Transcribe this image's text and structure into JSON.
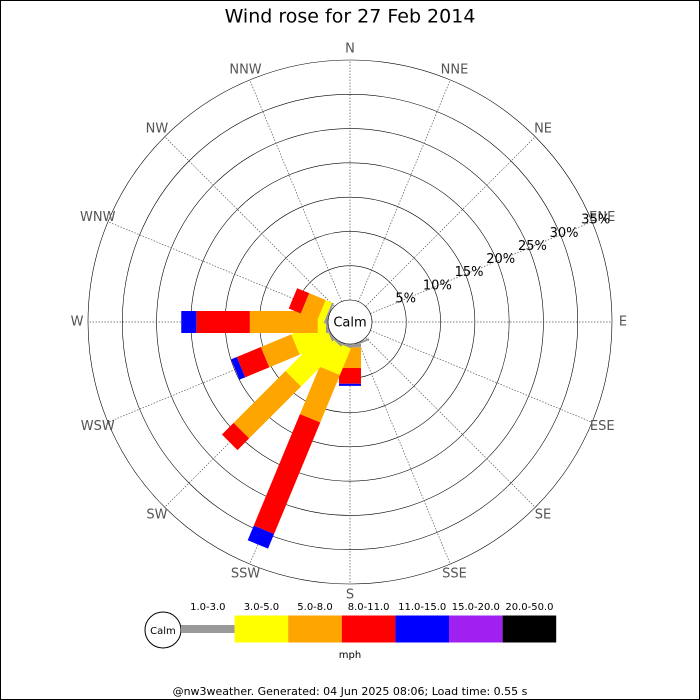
{
  "chart_data": {
    "type": "windrose",
    "title": "Wind rose for 27 Feb 2014",
    "center_label": "Calm",
    "categories": [
      "N",
      "NNE",
      "NE",
      "ENE",
      "E",
      "ESE",
      "SE",
      "SSE",
      "S",
      "SSW",
      "SW",
      "WSW",
      "W",
      "WNW",
      "NW",
      "NNW"
    ],
    "series": [
      {
        "name": "1.0-3.0",
        "color": "#999999",
        "values": [
          0,
          0,
          0,
          0,
          0,
          0,
          0,
          0.3,
          0.5,
          0.3,
          0.3,
          0.3,
          0.3,
          0.3,
          0,
          0
        ]
      },
      {
        "name": "3.0-5.0",
        "color": "#ffff00",
        "values": [
          0,
          0,
          0,
          0,
          0,
          0,
          0,
          0,
          0,
          4.2,
          8.2,
          5.1,
          1.2,
          1.0,
          0,
          0
        ]
      },
      {
        "name": "5.0-8.0",
        "color": "#ffa500",
        "values": [
          0,
          0,
          0,
          0,
          0,
          0,
          0,
          0,
          3.0,
          7.5,
          10.7,
          4.8,
          9.9,
          2.6,
          0,
          0
        ]
      },
      {
        "name": "8.0-11.0",
        "color": "#ff0000",
        "values": [
          0,
          0,
          0,
          0,
          0,
          0,
          0,
          0,
          2.3,
          17.6,
          2.4,
          3.8,
          7.8,
          1.9,
          0,
          0
        ]
      },
      {
        "name": "11.0-15.0",
        "color": "#0000ff",
        "values": [
          0,
          0,
          0,
          0,
          0,
          0,
          0,
          0,
          0.3,
          2.3,
          0,
          0.9,
          2.2,
          0,
          0,
          0
        ]
      },
      {
        "name": "15.0-20.0",
        "color": "#a020f0",
        "values": [
          0,
          0,
          0,
          0,
          0,
          0,
          0,
          0,
          0,
          0,
          0,
          0,
          0,
          0,
          0,
          0
        ]
      },
      {
        "name": "20.0-50.0",
        "color": "#000000",
        "values": [
          0,
          0,
          0,
          0,
          0,
          0,
          0,
          0,
          0,
          0,
          0,
          0,
          0,
          0,
          0,
          0
        ]
      }
    ],
    "rlim": [
      0,
      35
    ],
    "rticks": [
      {
        "value": 5,
        "label": "5%"
      },
      {
        "value": 10,
        "label": "10%"
      },
      {
        "value": 15,
        "label": "15%"
      },
      {
        "value": 20,
        "label": "20%"
      },
      {
        "value": 25,
        "label": "25%"
      },
      {
        "value": 30,
        "label": "30%"
      },
      {
        "value": 35,
        "label": "35%"
      }
    ],
    "legend_unit": "mph",
    "footer": "@nw3weather. Generated: 04 Jun 2025 08:06; Load time: 0.55 s"
  }
}
